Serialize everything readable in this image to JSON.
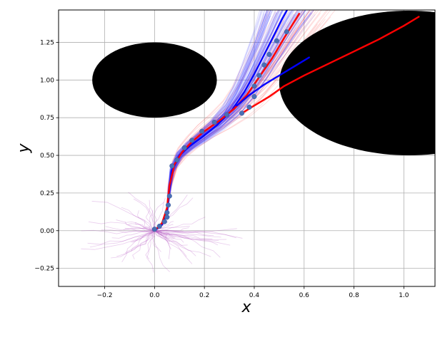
{
  "chart_data": {
    "type": "scatter",
    "title": "",
    "xlabel": "x",
    "ylabel": "y",
    "xlim": [
      -0.385,
      1.125
    ],
    "ylim": [
      -0.37,
      1.465
    ],
    "grid": true,
    "x_ticks": [
      -0.2,
      0.0,
      0.2,
      0.4,
      0.6,
      0.8,
      1.0
    ],
    "x_tick_labels": [
      "−0.2",
      "0.0",
      "0.2",
      "0.4",
      "0.6",
      "0.8",
      "1.0"
    ],
    "y_ticks": [
      -0.25,
      0.0,
      0.25,
      0.5,
      0.75,
      1.0,
      1.25
    ],
    "y_tick_labels": [
      "−0.25",
      "0.00",
      "0.25",
      "0.50",
      "0.75",
      "1.00",
      "1.25"
    ],
    "obstacles": [
      {
        "cx": 0.0,
        "cy": 1.0,
        "rx": 0.25,
        "ry": 0.25,
        "color": "#000000"
      },
      {
        "cx": 1.02,
        "cy": 0.98,
        "rx": 0.52,
        "ry": 0.48,
        "color": "#000000"
      }
    ],
    "observed_points": {
      "color": "#4a6fb5",
      "x": [
        0.0,
        0.02,
        0.04,
        0.05,
        0.05,
        0.055,
        0.06,
        0.07,
        0.09,
        0.12,
        0.15,
        0.19,
        0.24,
        0.29,
        0.35,
        0.38,
        0.4,
        0.4,
        0.42,
        0.44,
        0.46,
        0.49,
        0.53
      ],
      "y": [
        0.01,
        0.03,
        0.06,
        0.09,
        0.12,
        0.17,
        0.23,
        0.43,
        0.47,
        0.55,
        0.6,
        0.66,
        0.72,
        0.77,
        0.78,
        0.82,
        0.89,
        0.96,
        1.03,
        1.1,
        1.17,
        1.26,
        1.32
      ]
    },
    "series": [
      {
        "color": "#0000ff",
        "x": [
          0.0,
          0.03,
          0.05,
          0.06,
          0.07,
          0.1,
          0.14,
          0.19,
          0.25,
          0.31,
          0.36,
          0.4,
          0.44,
          0.48,
          0.51,
          0.54
        ],
        "y": [
          0.0,
          0.04,
          0.12,
          0.28,
          0.4,
          0.5,
          0.56,
          0.62,
          0.7,
          0.8,
          0.92,
          1.04,
          1.17,
          1.3,
          1.4,
          1.49
        ]
      },
      {
        "color": "#ff0000",
        "x": [
          0.0,
          0.03,
          0.05,
          0.06,
          0.08,
          0.11,
          0.15,
          0.2,
          0.26,
          0.32,
          0.37,
          0.42,
          0.47,
          0.52,
          0.58
        ],
        "y": [
          0.0,
          0.05,
          0.15,
          0.3,
          0.44,
          0.52,
          0.59,
          0.66,
          0.73,
          0.81,
          0.9,
          1.02,
          1.14,
          1.28,
          1.44
        ]
      },
      {
        "color": "#ff0000",
        "x": [
          0.35,
          0.4,
          0.46,
          0.52,
          0.6,
          0.7,
          0.8,
          0.9,
          1.0,
          1.06
        ],
        "y": [
          0.78,
          0.83,
          0.89,
          0.96,
          1.03,
          1.11,
          1.19,
          1.27,
          1.36,
          1.42
        ]
      },
      {
        "color": "#0000ff",
        "x": [
          0.33,
          0.38,
          0.44,
          0.5,
          0.56,
          0.62
        ],
        "y": [
          0.83,
          0.9,
          0.97,
          1.03,
          1.09,
          1.15
        ]
      }
    ]
  }
}
